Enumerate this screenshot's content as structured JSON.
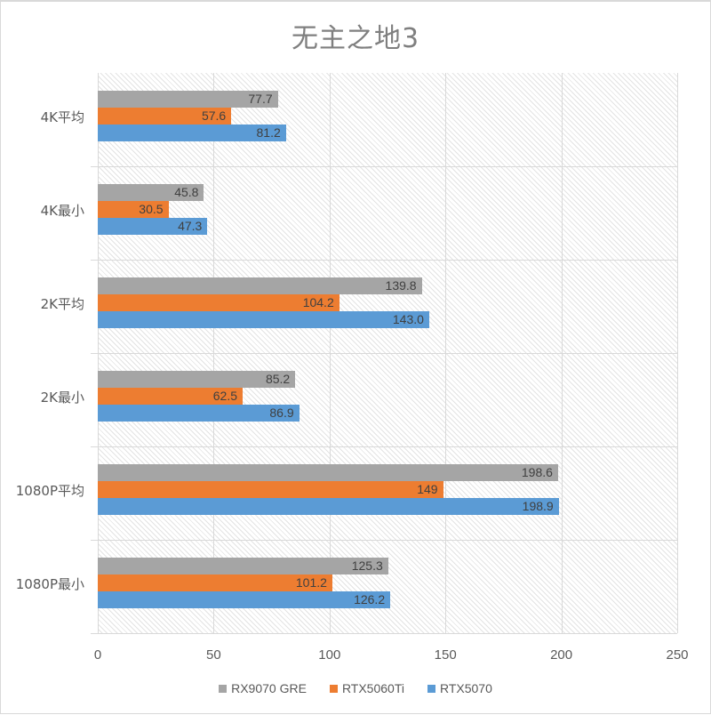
{
  "chart_data": {
    "type": "bar",
    "orientation": "horizontal",
    "title": "无主之地3",
    "xlabel": "",
    "ylabel": "",
    "categories": [
      "4K平均",
      "4K最小",
      "2K平均",
      "2K最小",
      "1080P平均",
      "1080P最小"
    ],
    "series": [
      {
        "name": "RX9070 GRE",
        "color": "#a5a5a5",
        "values": [
          77.7,
          45.8,
          139.8,
          85.2,
          198.6,
          125.3
        ],
        "labels": [
          "77.7",
          "45.8",
          "139.8",
          "85.2",
          "198.6",
          "125.3"
        ]
      },
      {
        "name": "RTX5060Ti",
        "color": "#ed7d31",
        "values": [
          57.6,
          30.5,
          104.2,
          62.5,
          149,
          101.2
        ],
        "labels": [
          "57.6",
          "30.5",
          "104.2",
          "62.5",
          "149",
          "101.2"
        ]
      },
      {
        "name": "RTX5070",
        "color": "#5b9bd5",
        "values": [
          81.2,
          47.3,
          143.0,
          86.9,
          198.9,
          126.2
        ],
        "labels": [
          "81.2",
          "47.3",
          "143.0",
          "86.9",
          "198.9",
          "126.2"
        ]
      }
    ],
    "xlim": [
      0,
      250
    ],
    "xticks": [
      "0",
      "50",
      "100",
      "150",
      "200",
      "250"
    ],
    "grid": true,
    "legend_position": "bottom"
  }
}
